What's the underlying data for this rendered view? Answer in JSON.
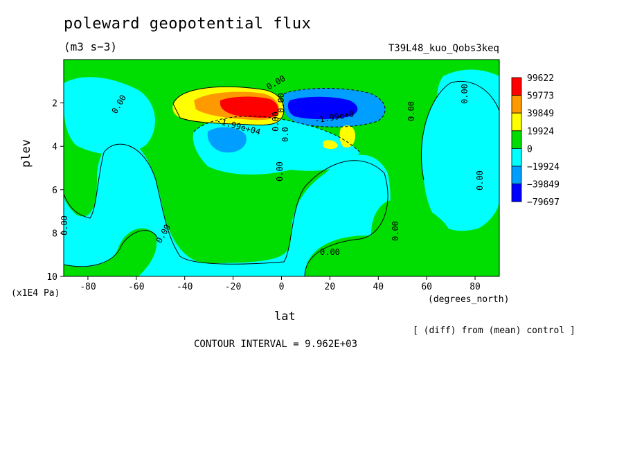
{
  "chart_data": {
    "type": "heatmap",
    "title": "poleward geopotential flux",
    "units": "(m3 s−3)",
    "run_label": "T39L48_kuo_Qobs3keq",
    "xlabel": "lat",
    "xunit": "(degrees_north)",
    "ylabel": "plev",
    "yunit": "(x1E4 Pa)",
    "xlim": [
      -90,
      90
    ],
    "ylim": [
      10,
      0
    ],
    "x_ticks": [
      -80,
      -60,
      -40,
      -20,
      0,
      20,
      40,
      60,
      80
    ],
    "y_ticks": [
      2,
      4,
      6,
      8,
      10
    ],
    "note": "[ (diff) from (mean) control ]",
    "contour_interval_text": "CONTOUR INTERVAL = 9.962E+03",
    "contour_labels": [
      "0.00",
      "0.00",
      "0.00",
      "0.00",
      "0.00",
      "0.00",
      "0.00",
      "0.00",
      "0.00",
      "0.00",
      "0.00",
      "0.00",
      "-1.99e+04",
      "-1.99e+0",
      "0.0"
    ],
    "colorbar": {
      "labels": [
        "99622",
        "59773",
        "39849",
        "19924",
        "0",
        "−19924",
        "−39849",
        "−79697"
      ],
      "colors": [
        "#ff0000",
        "#ff9900",
        "#ffff00",
        "#00dd00",
        "#00ffff",
        "#009fff",
        "#0000ff"
      ]
    },
    "features": [
      {
        "name": "positive-core",
        "lat": -12,
        "plev": 2.2,
        "value": 99622
      },
      {
        "name": "negative-core",
        "lat": 10,
        "plev": 2.2,
        "value": -79697
      },
      {
        "name": "positive-small",
        "lat": 25,
        "plev": 4.0,
        "value": 39849
      },
      {
        "name": "negative-small",
        "lat": -27,
        "plev": 4.0,
        "value": -39849
      }
    ]
  }
}
